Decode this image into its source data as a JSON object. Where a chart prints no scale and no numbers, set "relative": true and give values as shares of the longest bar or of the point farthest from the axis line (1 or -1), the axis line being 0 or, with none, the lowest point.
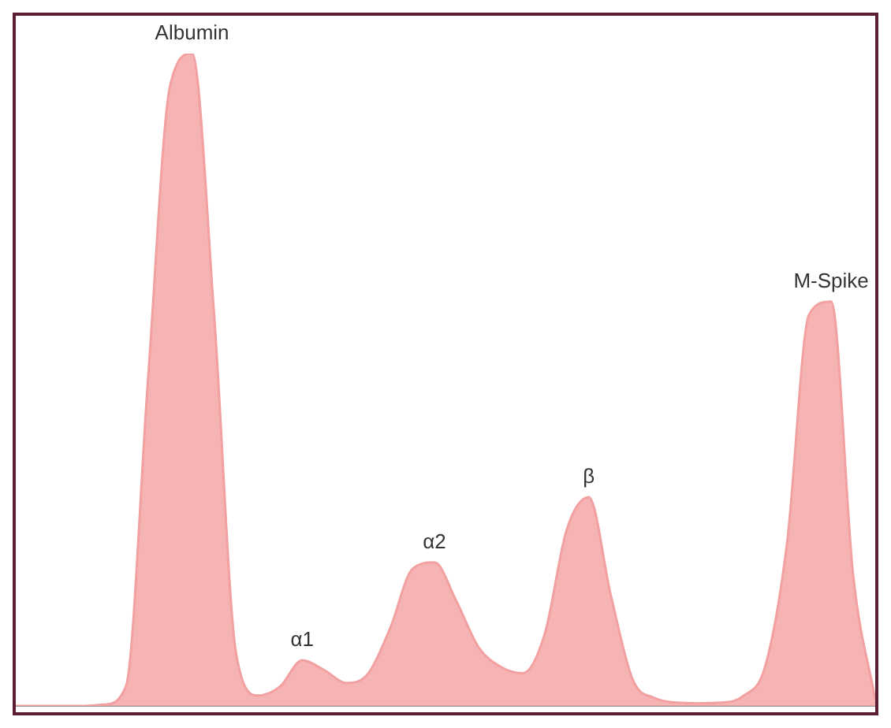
{
  "chart_data": {
    "type": "area",
    "relative": true,
    "categories": [
      null,
      null,
      null,
      null,
      null,
      null,
      null,
      null,
      null,
      null,
      null,
      null,
      null,
      null,
      null,
      null,
      null,
      null,
      null,
      null,
      null,
      null,
      null,
      null,
      null,
      null,
      null,
      null,
      null,
      null,
      null,
      null,
      null,
      null,
      null,
      null,
      null,
      null,
      null,
      null
    ],
    "series": [
      {
        "color": "#f2a0a0",
        "values": [
          0,
          0,
          0,
          0,
          0.002,
          0.03,
          0.5,
          0.95,
          1,
          0.6,
          0.08,
          0.016,
          0.03,
          0.07,
          0.055,
          0.035,
          0.05,
          0.12,
          0.21,
          0.22,
          0.16,
          0.09,
          0.06,
          0.05,
          0.11,
          0.27,
          0.32,
          0.17,
          0.04,
          0.012,
          0.005,
          0.004,
          0.005,
          0.015,
          0.06,
          0.25,
          0.6,
          0.62,
          0.2,
          0.01
        ]
      }
    ],
    "annotations": [
      "Albumin",
      "α1",
      "α2",
      "β",
      "M-Spike"
    ],
    "grid": false,
    "legend": false
  }
}
